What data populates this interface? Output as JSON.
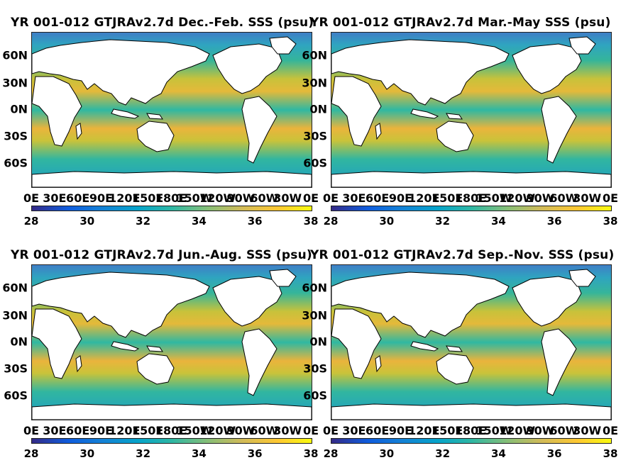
{
  "panels": [
    {
      "title": "YR 001-012 GTJRAv2.7d Dec.-Feb. SSS (psu)"
    },
    {
      "title": "YR 001-012 GTJRAv2.7d Mar.-May SSS (psu)"
    },
    {
      "title": "YR 001-012 GTJRAv2.7d Jun.-Aug. SSS (psu)"
    },
    {
      "title": "YR 001-012 GTJRAv2.7d Sep.-Nov. SSS (psu)"
    }
  ],
  "lat_ticks": [
    "60N",
    "30N",
    "0N",
    "30S",
    "60S"
  ],
  "lon_ticks": [
    "0E",
    "30E",
    "60E",
    "90E",
    "120E",
    "150E",
    "180E",
    "150W",
    "120W",
    "90W",
    "60W",
    "30W",
    "0E"
  ],
  "colorbar_ticks": [
    "28",
    "30",
    "32",
    "34",
    "36",
    "38"
  ],
  "colormap": "parula",
  "land_color": "#ffffff"
}
